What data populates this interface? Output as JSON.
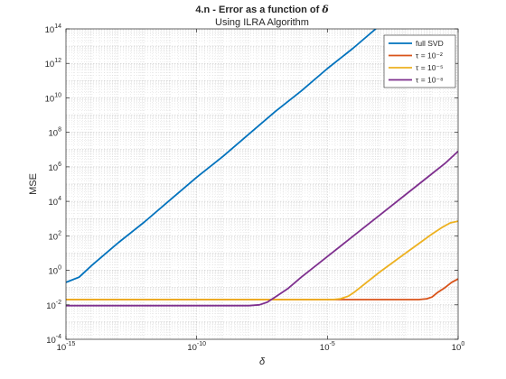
{
  "chart_data": {
    "type": "line",
    "title_main": "4.n - Error as a function of ",
    "title_symbol": "δ",
    "subtitle": "Using ILRA Algorithm",
    "xlabel": "δ",
    "ylabel": "MSE",
    "xscale": "log",
    "yscale": "log",
    "xlim_exp": [
      -15,
      0
    ],
    "ylim_exp": [
      -4,
      14
    ],
    "x_ticks": [
      {
        "exp": -15,
        "base": "10",
        "sup": "-15"
      },
      {
        "exp": -10,
        "base": "10",
        "sup": "-10"
      },
      {
        "exp": -5,
        "base": "10",
        "sup": "-5"
      },
      {
        "exp": 0,
        "base": "10",
        "sup": "0"
      }
    ],
    "y_ticks": [
      {
        "exp": -4,
        "base": "10",
        "sup": "-4"
      },
      {
        "exp": -2,
        "base": "10",
        "sup": "-2"
      },
      {
        "exp": 0,
        "base": "10",
        "sup": "0"
      },
      {
        "exp": 2,
        "base": "10",
        "sup": "2"
      },
      {
        "exp": 4,
        "base": "10",
        "sup": "4"
      },
      {
        "exp": 6,
        "base": "10",
        "sup": "6"
      },
      {
        "exp": 8,
        "base": "10",
        "sup": "8"
      },
      {
        "exp": 10,
        "base": "10",
        "sup": "10"
      },
      {
        "exp": 12,
        "base": "10",
        "sup": "12"
      },
      {
        "exp": 14,
        "base": "10",
        "sup": "14"
      }
    ],
    "grid": true,
    "legend_position": "top-right",
    "series": [
      {
        "name": "full SVD",
        "label_html": "full SVD",
        "color": "#0072BD",
        "points_log10": [
          [
            -15,
            -0.7
          ],
          [
            -14.5,
            -0.4
          ],
          [
            -14,
            0.3
          ],
          [
            -13,
            1.6
          ],
          [
            -12,
            2.8
          ],
          [
            -11,
            4.1
          ],
          [
            -10,
            5.4
          ],
          [
            -9,
            6.6
          ],
          [
            -8,
            7.9
          ],
          [
            -7,
            9.2
          ],
          [
            -6,
            10.4
          ],
          [
            -5,
            11.7
          ],
          [
            -4,
            12.9
          ],
          [
            -3,
            14.2
          ],
          [
            -2,
            15.4
          ],
          [
            -1,
            16.7
          ],
          [
            0,
            17.9
          ]
        ]
      },
      {
        "name": "τ = 10^-2",
        "label_html": "τ = 10⁻²",
        "color": "#D95319",
        "points_log10": [
          [
            -15,
            -1.7
          ],
          [
            -13,
            -1.7
          ],
          [
            -11,
            -1.7
          ],
          [
            -9,
            -1.7
          ],
          [
            -7,
            -1.7
          ],
          [
            -5,
            -1.7
          ],
          [
            -3,
            -1.7
          ],
          [
            -2,
            -1.7
          ],
          [
            -1.5,
            -1.7
          ],
          [
            -1.2,
            -1.65
          ],
          [
            -1,
            -1.55
          ],
          [
            -0.8,
            -1.3
          ],
          [
            -0.5,
            -1.0
          ],
          [
            -0.25,
            -0.7
          ],
          [
            0,
            -0.5
          ]
        ]
      },
      {
        "name": "τ = 10^-5",
        "label_html": "τ = 10⁻⁵",
        "color": "#EDB120",
        "points_log10": [
          [
            -15,
            -1.7
          ],
          [
            -13,
            -1.7
          ],
          [
            -11,
            -1.7
          ],
          [
            -9,
            -1.7
          ],
          [
            -7,
            -1.7
          ],
          [
            -5,
            -1.7
          ],
          [
            -4.8,
            -1.7
          ],
          [
            -4.5,
            -1.65
          ],
          [
            -4.2,
            -1.5
          ],
          [
            -4,
            -1.3
          ],
          [
            -3,
            -0.1
          ],
          [
            -2,
            1.0
          ],
          [
            -1,
            2.1
          ],
          [
            -0.6,
            2.5
          ],
          [
            -0.3,
            2.75
          ],
          [
            0,
            2.85
          ]
        ]
      },
      {
        "name": "τ = 10^-8",
        "label_html": "τ = 10⁻⁸",
        "color": "#7E2F8E",
        "points_log10": [
          [
            -15,
            -2.05
          ],
          [
            -13,
            -2.05
          ],
          [
            -11,
            -2.05
          ],
          [
            -9,
            -2.05
          ],
          [
            -8,
            -2.05
          ],
          [
            -7.6,
            -2.0
          ],
          [
            -7.3,
            -1.85
          ],
          [
            -7,
            -1.55
          ],
          [
            -6.5,
            -1.05
          ],
          [
            -6,
            -0.4
          ],
          [
            -5,
            0.8
          ],
          [
            -4,
            2.0
          ],
          [
            -3,
            3.2
          ],
          [
            -2,
            4.4
          ],
          [
            -1,
            5.6
          ],
          [
            -0.5,
            6.2
          ],
          [
            0,
            6.9
          ]
        ]
      }
    ]
  }
}
